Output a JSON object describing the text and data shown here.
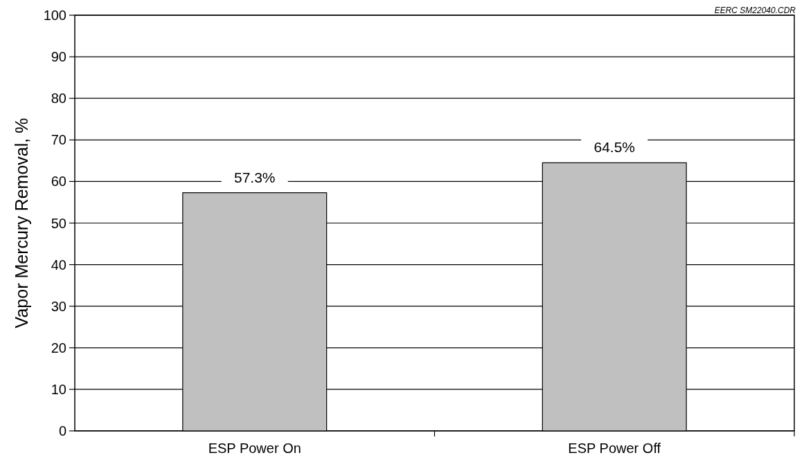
{
  "chart_data": {
    "type": "bar",
    "ylabel": "Vapor Mercury Removal, %",
    "categories": [
      "ESP Power On",
      "ESP Power Off"
    ],
    "values": [
      57.3,
      64.5
    ],
    "value_labels": [
      "57.3%",
      "64.5%"
    ],
    "color": "#c0c0c0",
    "ylim": [
      0,
      100
    ],
    "yticks": [
      0,
      10,
      20,
      30,
      40,
      50,
      60,
      70,
      80,
      90,
      100
    ],
    "grid": "y",
    "annotations": [
      "EERC SM22040.CDR"
    ]
  }
}
